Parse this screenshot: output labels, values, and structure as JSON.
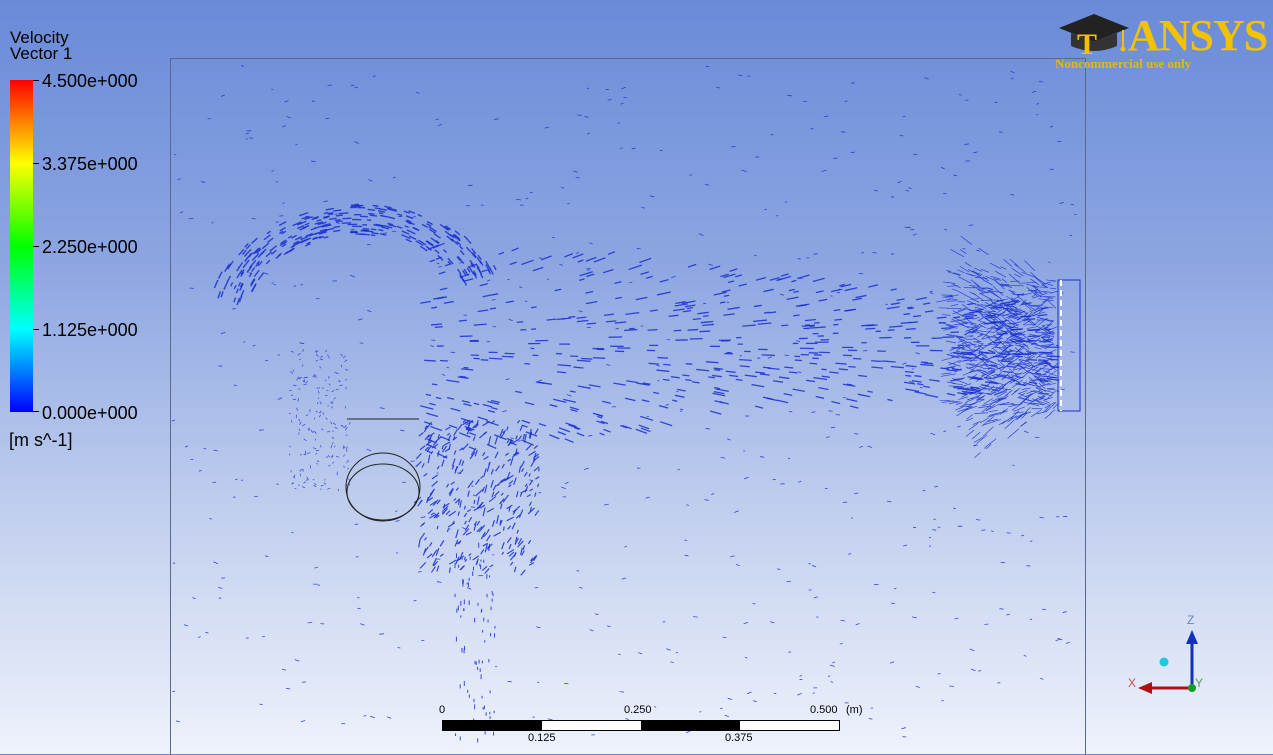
{
  "logo": {
    "wordmark": "ANSYS",
    "tagline": "Noncommercial use only",
    "brand_color": "#f2c200",
    "icon": "graduation-cap-icon"
  },
  "legend": {
    "title_line1": "Velocity",
    "title_line2": "Vector 1",
    "ticks": [
      "4.500e+000",
      "3.375e+000",
      "2.250e+000",
      "1.125e+000",
      "0.000e+000"
    ],
    "units": "[m s^-1]",
    "colormap": [
      "#ff0000",
      "#ff8000",
      "#ffff00",
      "#80ff00",
      "#00ff00",
      "#00ff80",
      "#00ffff",
      "#0080ff",
      "#0000ff"
    ]
  },
  "scale_bar": {
    "top_labels": [
      "0",
      "0.250",
      "0.500"
    ],
    "unit": "(m)",
    "bottom_labels": [
      "0.125",
      "0.375"
    ]
  },
  "axis_triad": {
    "x_label": "X",
    "y_label": "Y",
    "z_label": "Z",
    "x_color": "#b01010",
    "y_color": "#10a020",
    "z_color": "#1030c0"
  },
  "vector_color": "#1a2fd0"
}
